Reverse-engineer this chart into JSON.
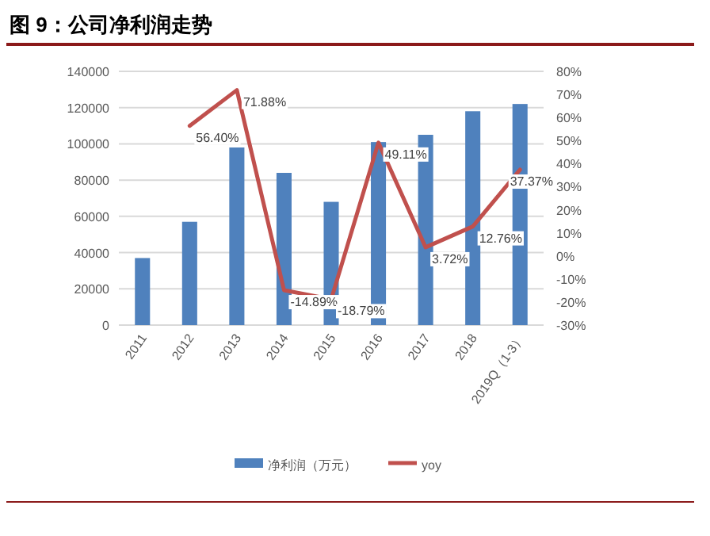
{
  "chart_data": {
    "type": "bar",
    "title": "图 9：公司净利润走势",
    "categories": [
      "2011",
      "2012",
      "2013",
      "2014",
      "2015",
      "2016",
      "2017",
      "2018",
      "2019Q（1-3）"
    ],
    "series": [
      {
        "name": "净利润（万元）",
        "color": "#4f81bd",
        "values": [
          37000,
          57000,
          98000,
          84000,
          68000,
          101000,
          105000,
          118000,
          122000
        ]
      },
      {
        "name": "yoy",
        "type": "line",
        "axis": "y2",
        "color": "#c0504d",
        "values": [
          null,
          56.4,
          71.88,
          -14.89,
          -18.79,
          49.11,
          3.72,
          12.76,
          37.37
        ],
        "value_labels": [
          null,
          "56.40%",
          "71.88%",
          "-14.89%",
          "-18.79%",
          "49.11%",
          "3.72%",
          "12.76%",
          "37.37%"
        ]
      }
    ],
    "ylim": [
      0,
      140000
    ],
    "yticks": [
      0,
      20000,
      40000,
      60000,
      80000,
      100000,
      120000,
      140000
    ],
    "y2lim": [
      -30,
      80
    ],
    "y2ticks": [
      {
        "value": -30,
        "label": "-30%"
      },
      {
        "value": -20,
        "label": "-20%"
      },
      {
        "value": -10,
        "label": "-10%"
      },
      {
        "value": 0,
        "label": "0%"
      },
      {
        "value": 10,
        "label": "10%"
      },
      {
        "value": 20,
        "label": "20%"
      },
      {
        "value": 30,
        "label": "30%"
      },
      {
        "value": 40,
        "label": "40%"
      },
      {
        "value": 50,
        "label": "50%"
      },
      {
        "value": 60,
        "label": "60%"
      },
      {
        "value": 70,
        "label": "70%"
      },
      {
        "value": 80,
        "label": "80%"
      }
    ],
    "grid": "y",
    "legend": "bottom",
    "marker": "none",
    "line_style": "solid"
  }
}
